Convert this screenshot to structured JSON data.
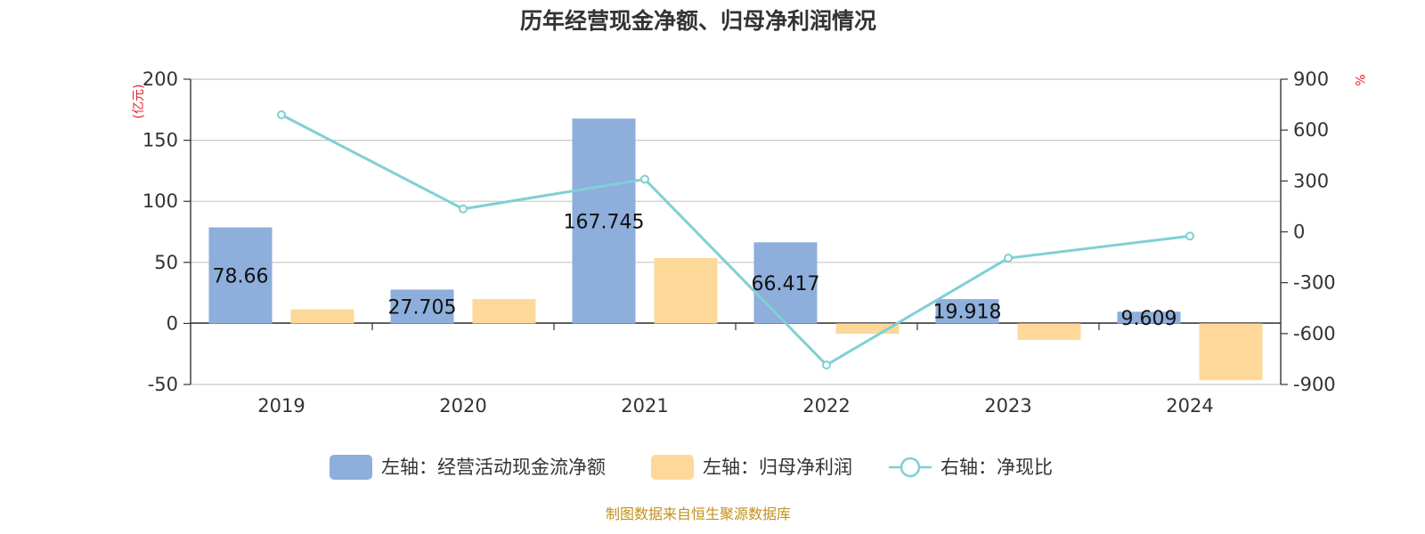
{
  "chart_data": {
    "type": "bar",
    "title": "历年经营现金净额、归母净利润情况",
    "categories": [
      "2019",
      "2020",
      "2021",
      "2022",
      "2023",
      "2024"
    ],
    "series": [
      {
        "name": "左轴：经营活动现金流净额",
        "axis": "left",
        "kind": "bar",
        "values": [
          78.66,
          27.705,
          167.745,
          66.417,
          19.918,
          9.609
        ],
        "data_labels": [
          "78.66",
          "27.705",
          "167.745",
          "66.417",
          "19.918",
          "9.609"
        ],
        "color": "#8eaedb"
      },
      {
        "name": "左轴：归母净利润",
        "axis": "left",
        "kind": "bar",
        "values": [
          11.5,
          20.0,
          53.5,
          -8.5,
          -13.5,
          -46.5
        ],
        "color": "#fdd898"
      },
      {
        "name": "右轴：净现比",
        "axis": "right",
        "kind": "line",
        "values": [
          690,
          135,
          310,
          -785,
          -155,
          -25
        ],
        "color": "#7fd0d3"
      }
    ],
    "left_axis": {
      "unit": "(亿元)",
      "ylim": [
        -50,
        200
      ],
      "ticks": [
        "200",
        "150",
        "100",
        "50",
        "0",
        "-50"
      ]
    },
    "right_axis": {
      "unit": "%",
      "ylim": [
        -900,
        900
      ],
      "ticks": [
        "900",
        "600",
        "300",
        "0",
        "-300",
        "-600",
        "-900"
      ]
    },
    "grid": true,
    "legend_position": "bottom",
    "unit_color": "#e5222a"
  },
  "source": {
    "text": "制图数据来自恒生聚源数据库",
    "color": "#c2901e"
  }
}
